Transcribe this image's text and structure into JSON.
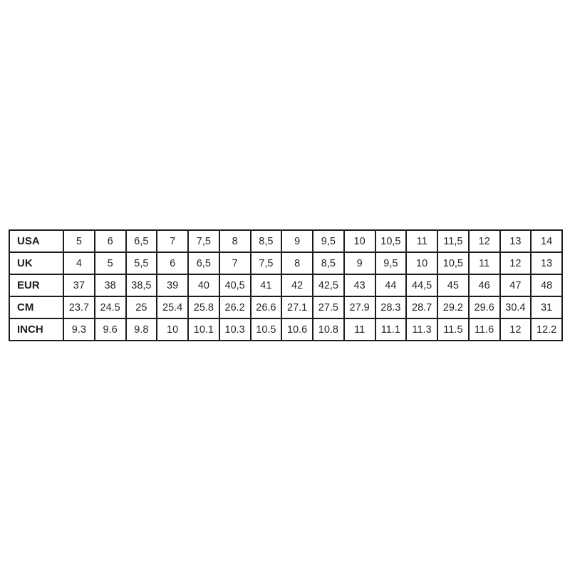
{
  "chart_data": {
    "type": "table",
    "description": "Shoe size conversion table",
    "rows": [
      {
        "label": "USA",
        "values": [
          "5",
          "6",
          "6,5",
          "7",
          "7,5",
          "8",
          "8,5",
          "9",
          "9,5",
          "10",
          "10,5",
          "11",
          "11,5",
          "12",
          "13",
          "14"
        ]
      },
      {
        "label": "UK",
        "values": [
          "4",
          "5",
          "5,5",
          "6",
          "6,5",
          "7",
          "7,5",
          "8",
          "8,5",
          "9",
          "9,5",
          "10",
          "10,5",
          "11",
          "12",
          "13"
        ]
      },
      {
        "label": "EUR",
        "values": [
          "37",
          "38",
          "38,5",
          "39",
          "40",
          "40,5",
          "41",
          "42",
          "42,5",
          "43",
          "44",
          "44,5",
          "45",
          "46",
          "47",
          "48"
        ]
      },
      {
        "label": "CM",
        "values": [
          "23.7",
          "24.5",
          "25",
          "25.4",
          "25.8",
          "26.2",
          "26.6",
          "27.1",
          "27.5",
          "27.9",
          "28.3",
          "28.7",
          "29.2",
          "29.6",
          "30.4",
          "31"
        ]
      },
      {
        "label": "INCH",
        "values": [
          "9.3",
          "9.6",
          "9.8",
          "10",
          "10.1",
          "10.3",
          "10.5",
          "10.6",
          "10.8",
          "11",
          "11.1",
          "11.3",
          "11.5",
          "11.6",
          "12",
          "12.2"
        ]
      }
    ]
  },
  "colors": {
    "background": "#ffffff",
    "border": "#1c1c1c",
    "text": "#262626"
  }
}
